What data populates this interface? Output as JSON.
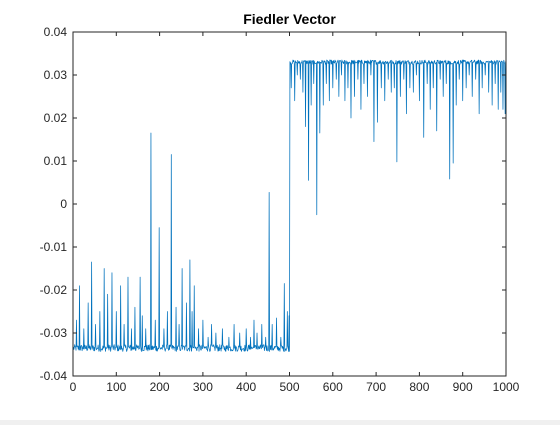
{
  "chart_data": {
    "type": "line",
    "title": "Fiedler Vector",
    "xlabel": "",
    "ylabel": "",
    "xlim": [
      0,
      1000
    ],
    "ylim": [
      -0.04,
      0.04
    ],
    "x_ticks": [
      0,
      100,
      200,
      300,
      400,
      500,
      600,
      700,
      800,
      900,
      1000
    ],
    "x_tick_labels": [
      "0",
      "100",
      "200",
      "300",
      "400",
      "500",
      "600",
      "700",
      "800",
      "900",
      "1000"
    ],
    "y_ticks": [
      -0.04,
      -0.03,
      -0.02,
      -0.01,
      0,
      0.01,
      0.02,
      0.03,
      0.04
    ],
    "y_tick_labels": [
      "-0.04",
      "-0.03",
      "-0.02",
      "-0.01",
      "0",
      "0.01",
      "0.02",
      "0.03",
      "0.04"
    ],
    "grid": false,
    "legend": "none",
    "series": [
      {
        "color": "#0072BD",
        "n_points": 1000,
        "segments": [
          {
            "x_range": [
              1,
              500
            ],
            "baseline_mean": -0.0335,
            "baseline_spread": 0.0008
          },
          {
            "x_range": [
              501,
              1000
            ],
            "baseline_mean": 0.033,
            "baseline_spread": 0.0005
          }
        ],
        "spikes": [
          {
            "x": 8,
            "y": -0.027
          },
          {
            "x": 15,
            "y": -0.019
          },
          {
            "x": 25,
            "y": -0.029
          },
          {
            "x": 35,
            "y": -0.023
          },
          {
            "x": 43,
            "y": -0.0135
          },
          {
            "x": 52,
            "y": -0.028
          },
          {
            "x": 62,
            "y": -0.025
          },
          {
            "x": 72,
            "y": -0.015
          },
          {
            "x": 80,
            "y": -0.021
          },
          {
            "x": 90,
            "y": -0.016
          },
          {
            "x": 100,
            "y": -0.025
          },
          {
            "x": 110,
            "y": -0.019
          },
          {
            "x": 118,
            "y": -0.028
          },
          {
            "x": 127,
            "y": -0.017
          },
          {
            "x": 135,
            "y": -0.029
          },
          {
            "x": 143,
            "y": -0.024
          },
          {
            "x": 155,
            "y": -0.017
          },
          {
            "x": 160,
            "y": -0.026
          },
          {
            "x": 168,
            "y": -0.029
          },
          {
            "x": 180,
            "y": 0.0165
          },
          {
            "x": 190,
            "y": -0.027
          },
          {
            "x": 199,
            "y": -0.0055
          },
          {
            "x": 210,
            "y": -0.029
          },
          {
            "x": 218,
            "y": -0.025
          },
          {
            "x": 227,
            "y": 0.0115
          },
          {
            "x": 238,
            "y": -0.024
          },
          {
            "x": 245,
            "y": -0.028
          },
          {
            "x": 252,
            "y": -0.015
          },
          {
            "x": 262,
            "y": -0.023
          },
          {
            "x": 270,
            "y": -0.013
          },
          {
            "x": 275,
            "y": -0.025
          },
          {
            "x": 280,
            "y": -0.019
          },
          {
            "x": 290,
            "y": -0.029
          },
          {
            "x": 300,
            "y": -0.027
          },
          {
            "x": 312,
            "y": -0.031
          },
          {
            "x": 320,
            "y": -0.028
          },
          {
            "x": 330,
            "y": -0.03
          },
          {
            "x": 345,
            "y": -0.029
          },
          {
            "x": 360,
            "y": -0.031
          },
          {
            "x": 372,
            "y": -0.028
          },
          {
            "x": 385,
            "y": -0.03
          },
          {
            "x": 400,
            "y": -0.029
          },
          {
            "x": 410,
            "y": -0.031
          },
          {
            "x": 418,
            "y": -0.027
          },
          {
            "x": 425,
            "y": -0.03
          },
          {
            "x": 436,
            "y": -0.028
          },
          {
            "x": 445,
            "y": -0.031
          },
          {
            "x": 453,
            "y": 0.0027
          },
          {
            "x": 460,
            "y": -0.028
          },
          {
            "x": 470,
            "y": -0.0265
          },
          {
            "x": 480,
            "y": -0.031
          },
          {
            "x": 488,
            "y": -0.0185
          },
          {
            "x": 495,
            "y": -0.025
          },
          {
            "x": 499,
            "y": -0.026
          },
          {
            "x": 504,
            "y": 0.027
          },
          {
            "x": 512,
            "y": 0.024
          },
          {
            "x": 518,
            "y": 0.03
          },
          {
            "x": 525,
            "y": 0.029
          },
          {
            "x": 531,
            "y": 0.026
          },
          {
            "x": 537,
            "y": 0.018
          },
          {
            "x": 544,
            "y": 0.0055
          },
          {
            "x": 550,
            "y": 0.023
          },
          {
            "x": 556,
            "y": 0.028
          },
          {
            "x": 563,
            "y": -0.0025
          },
          {
            "x": 570,
            "y": 0.0165
          },
          {
            "x": 578,
            "y": 0.023
          },
          {
            "x": 585,
            "y": 0.028
          },
          {
            "x": 592,
            "y": 0.024
          },
          {
            "x": 600,
            "y": 0.027
          },
          {
            "x": 608,
            "y": 0.029
          },
          {
            "x": 614,
            "y": 0.025
          },
          {
            "x": 620,
            "y": 0.03
          },
          {
            "x": 628,
            "y": 0.024
          },
          {
            "x": 635,
            "y": 0.027
          },
          {
            "x": 642,
            "y": 0.02
          },
          {
            "x": 650,
            "y": 0.025
          },
          {
            "x": 658,
            "y": 0.029
          },
          {
            "x": 665,
            "y": 0.022
          },
          {
            "x": 672,
            "y": 0.028
          },
          {
            "x": 680,
            "y": 0.025
          },
          {
            "x": 688,
            "y": 0.03
          },
          {
            "x": 695,
            "y": 0.0145
          },
          {
            "x": 703,
            "y": 0.019
          },
          {
            "x": 712,
            "y": 0.027
          },
          {
            "x": 720,
            "y": 0.024
          },
          {
            "x": 728,
            "y": 0.029
          },
          {
            "x": 735,
            "y": 0.026
          },
          {
            "x": 742,
            "y": 0.027
          },
          {
            "x": 748,
            "y": 0.0098
          },
          {
            "x": 756,
            "y": 0.025
          },
          {
            "x": 764,
            "y": 0.029
          },
          {
            "x": 770,
            "y": 0.021
          },
          {
            "x": 778,
            "y": 0.027
          },
          {
            "x": 786,
            "y": 0.026
          },
          {
            "x": 793,
            "y": 0.03
          },
          {
            "x": 800,
            "y": 0.024
          },
          {
            "x": 810,
            "y": 0.0155
          },
          {
            "x": 818,
            "y": 0.028
          },
          {
            "x": 825,
            "y": 0.022
          },
          {
            "x": 832,
            "y": 0.027
          },
          {
            "x": 840,
            "y": 0.017
          },
          {
            "x": 848,
            "y": 0.029
          },
          {
            "x": 855,
            "y": 0.025
          },
          {
            "x": 862,
            "y": 0.028
          },
          {
            "x": 870,
            "y": 0.0058
          },
          {
            "x": 878,
            "y": 0.0095
          },
          {
            "x": 885,
            "y": 0.023
          },
          {
            "x": 892,
            "y": 0.029
          },
          {
            "x": 900,
            "y": 0.024
          },
          {
            "x": 908,
            "y": 0.027
          },
          {
            "x": 915,
            "y": 0.03
          },
          {
            "x": 922,
            "y": 0.025
          },
          {
            "x": 930,
            "y": 0.029
          },
          {
            "x": 938,
            "y": 0.021
          },
          {
            "x": 945,
            "y": 0.027
          },
          {
            "x": 952,
            "y": 0.03
          },
          {
            "x": 960,
            "y": 0.026
          },
          {
            "x": 968,
            "y": 0.023
          },
          {
            "x": 975,
            "y": 0.028
          },
          {
            "x": 982,
            "y": 0.022
          },
          {
            "x": 988,
            "y": 0.026
          },
          {
            "x": 993,
            "y": 0.022
          },
          {
            "x": 998,
            "y": 0.021
          }
        ]
      }
    ]
  }
}
